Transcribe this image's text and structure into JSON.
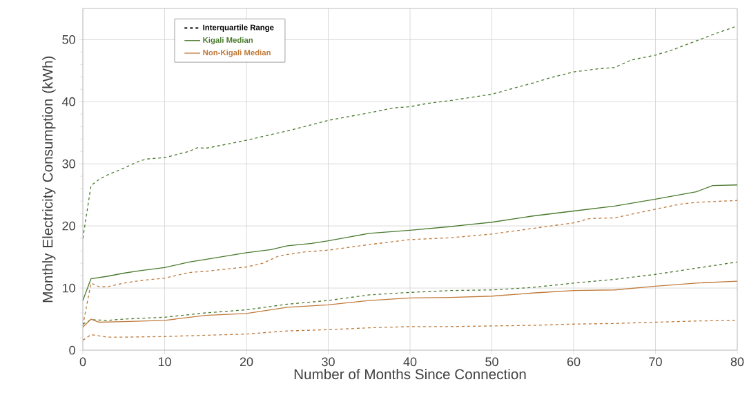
{
  "chart_data": {
    "type": "line",
    "xlabel": "Number of Months Since Connection",
    "ylabel": "Monthly Electricity Consumption (kWh)",
    "xlim": [
      0,
      80
    ],
    "ylim": [
      0,
      55
    ],
    "xticks": [
      0,
      10,
      20,
      30,
      40,
      50,
      60,
      70,
      80
    ],
    "yticks": [
      0,
      10,
      20,
      30,
      40,
      50
    ],
    "grid": true,
    "legend": "top left",
    "annotations": [
      "Interquartile Range"
    ],
    "series": [
      {
        "color": "#4a7a2e",
        "line_style": "dashed",
        "x": [
          0,
          1,
          2,
          3,
          5,
          7,
          8,
          10,
          13,
          14,
          15,
          17,
          20,
          25,
          30,
          35,
          38,
          40,
          42,
          45,
          47,
          50,
          53,
          55,
          57,
          60,
          63,
          65,
          67,
          70,
          72,
          75,
          77,
          80
        ],
        "values": [
          18,
          26.5,
          27.5,
          28.2,
          29.3,
          30.5,
          30.8,
          31,
          32,
          32.6,
          32.5,
          33,
          33.8,
          35.3,
          37,
          38.2,
          39,
          39.2,
          39.7,
          40.2,
          40.6,
          41.2,
          42.3,
          43,
          43.8,
          44.8,
          45.3,
          45.5,
          46.7,
          47.5,
          48.3,
          49.8,
          50.8,
          52.2
        ]
      },
      {
        "name": "Kigali Median",
        "color": "#4a7a2e",
        "line_style": "solid",
        "x": [
          0,
          1,
          3,
          5,
          7,
          10,
          13,
          15,
          20,
          23,
          25,
          28,
          30,
          35,
          40,
          45,
          47,
          50,
          55,
          60,
          65,
          70,
          75,
          77,
          80
        ],
        "values": [
          8,
          11.5,
          11.9,
          12.4,
          12.8,
          13.3,
          14.2,
          14.6,
          15.7,
          16.2,
          16.8,
          17.2,
          17.6,
          18.8,
          19.3,
          19.9,
          20.2,
          20.6,
          21.6,
          22.4,
          23.2,
          24.3,
          25.5,
          26.5,
          26.6
        ]
      },
      {
        "color": "#c07a3a",
        "line_style": "dashed",
        "x": [
          0,
          1,
          2,
          3,
          5,
          7,
          10,
          13,
          15,
          20,
          22,
          24,
          27,
          30,
          35,
          40,
          45,
          50,
          55,
          60,
          62,
          65,
          70,
          73,
          75,
          80
        ],
        "values": [
          4,
          10.8,
          10.2,
          10.2,
          10.8,
          11.2,
          11.6,
          12.5,
          12.7,
          13.4,
          14,
          15.2,
          15.8,
          16.1,
          17,
          17.8,
          18.1,
          18.7,
          19.6,
          20.5,
          21.2,
          21.3,
          22.7,
          23.5,
          23.8,
          24.1
        ]
      },
      {
        "color": "#4a7a2e",
        "line_style": "dashed",
        "x": [
          0,
          1,
          3,
          5,
          10,
          15,
          20,
          25,
          30,
          35,
          40,
          45,
          50,
          55,
          60,
          65,
          70,
          75,
          80
        ],
        "values": [
          4.2,
          4.9,
          4.8,
          5,
          5.3,
          6,
          6.5,
          7.4,
          8,
          8.9,
          9.3,
          9.6,
          9.7,
          10.1,
          10.8,
          11.4,
          12.2,
          13.2,
          14.2
        ]
      },
      {
        "name": "Non-Kigali Median",
        "color": "#c07a3a",
        "line_style": "solid",
        "x": [
          0,
          1,
          2,
          5,
          10,
          15,
          20,
          25,
          30,
          35,
          40,
          45,
          50,
          55,
          60,
          65,
          70,
          75,
          80
        ],
        "values": [
          3.7,
          5,
          4.5,
          4.6,
          4.8,
          5.6,
          5.9,
          6.9,
          7.3,
          8,
          8.4,
          8.5,
          8.7,
          9.2,
          9.6,
          9.7,
          10.3,
          10.8,
          11.1
        ]
      },
      {
        "color": "#c07a3a",
        "line_style": "dashed",
        "x": [
          0,
          1,
          3,
          5,
          10,
          15,
          20,
          25,
          30,
          35,
          40,
          45,
          50,
          55,
          60,
          65,
          70,
          75,
          80
        ],
        "values": [
          1.6,
          2.5,
          2.1,
          2.1,
          2.2,
          2.4,
          2.6,
          3.1,
          3.3,
          3.6,
          3.8,
          3.8,
          3.9,
          4,
          4.2,
          4.3,
          4.5,
          4.7,
          4.8
        ]
      }
    ]
  }
}
